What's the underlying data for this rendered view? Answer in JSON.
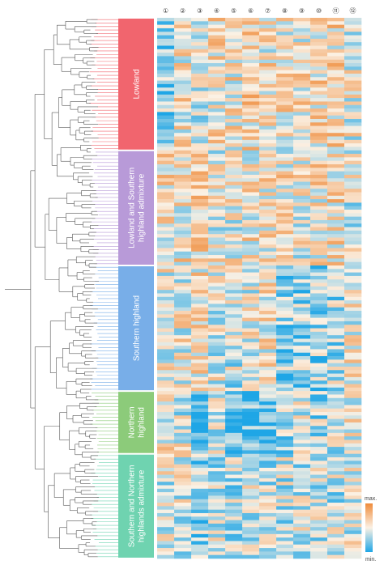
{
  "figure": {
    "groups": [
      {
        "label": "Lowland",
        "color": "#f1656e",
        "rows": 38
      },
      {
        "label": "Lowland and Southern highland admixture",
        "lines": [
          "Lowland and Southern",
          "highland admixture"
        ],
        "color": "#b89ad8",
        "rows": 33
      },
      {
        "label": "Southern highland",
        "color": "#78aee8",
        "rows": 36
      },
      {
        "label": "Northern highland",
        "lines": [
          "Northern",
          "highland"
        ],
        "color": "#8ccb7a",
        "rows": 18
      },
      {
        "label": "Southern and Northern highlands admixture",
        "lines": [
          "Southern and Northern",
          "highlands admixture"
        ],
        "color": "#6fd3b0",
        "rows": 30
      }
    ],
    "columns": [
      "①",
      "②",
      "③",
      "④",
      "⑤",
      "⑥",
      "⑦",
      "⑧",
      "⑨",
      "⑩",
      "⑪",
      "⑫"
    ],
    "legend": {
      "max_label": "max.",
      "min_label": "min.",
      "max_color": "#ef8b3a",
      "mid_color": "#fbf1e4",
      "min_color": "#1fa6e6"
    }
  }
}
